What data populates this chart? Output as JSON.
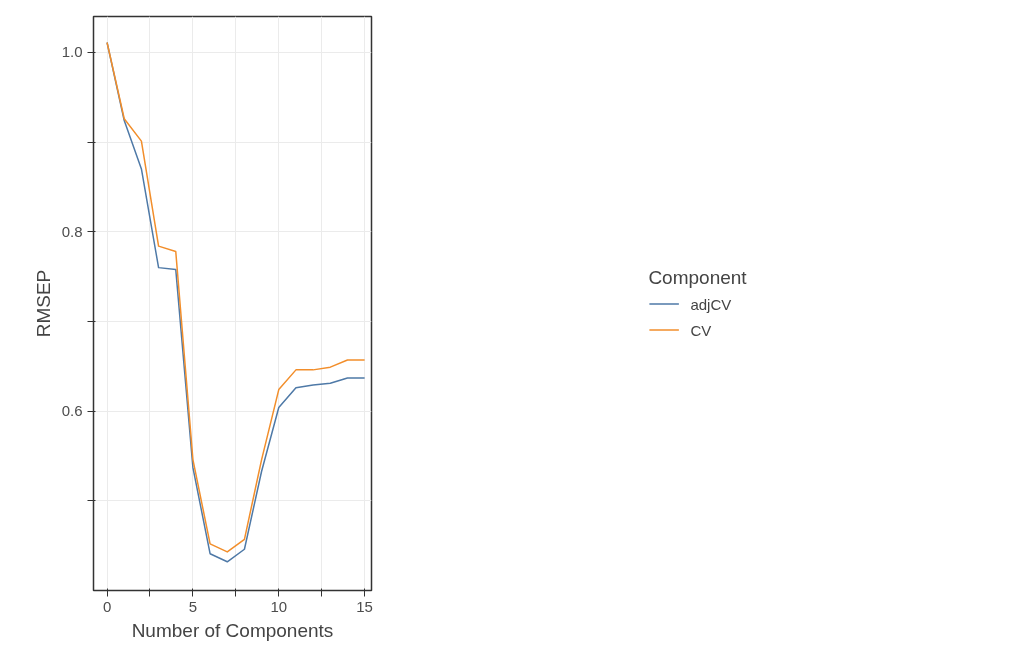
{
  "chart_data": {
    "type": "line",
    "xlabel": "Number of Components",
    "ylabel": "RMSEP",
    "legend_title": "Component",
    "x": [
      0,
      1,
      2,
      3,
      4,
      5,
      6,
      7,
      8,
      9,
      10,
      11,
      12,
      13,
      14,
      15
    ],
    "series": [
      {
        "name": "adjCV",
        "color": "#4e79a7",
        "values": [
          1.011,
          0.924,
          0.87,
          0.76,
          0.758,
          0.537,
          0.441,
          0.432,
          0.446,
          0.533,
          0.604,
          0.626,
          0.629,
          0.631,
          0.637,
          0.637
        ]
      },
      {
        "name": "CV",
        "color": "#f28e2b",
        "values": [
          1.011,
          0.926,
          0.901,
          0.784,
          0.778,
          0.546,
          0.452,
          0.443,
          0.457,
          0.546,
          0.624,
          0.646,
          0.646,
          0.649,
          0.657,
          0.657
        ]
      }
    ],
    "xlim": [
      -0.79,
      15.4
    ],
    "ylim": [
      0.4,
      1.04
    ],
    "xticks": [
      0,
      {
        "value": 2.5,
        "label": null
      },
      5,
      {
        "value": 7.5,
        "label": null
      },
      10,
      {
        "value": 12.5,
        "label": null
      },
      15
    ],
    "yticks": [
      {
        "value": 0.5,
        "label": null
      },
      0.6,
      {
        "value": 0.7,
        "label": null
      },
      0.8,
      {
        "value": 0.9,
        "label": null
      },
      {
        "value": 1.0,
        "label": "1.0"
      }
    ],
    "grid": true,
    "legend": "right",
    "line_style": "solid",
    "marker": "none"
  }
}
